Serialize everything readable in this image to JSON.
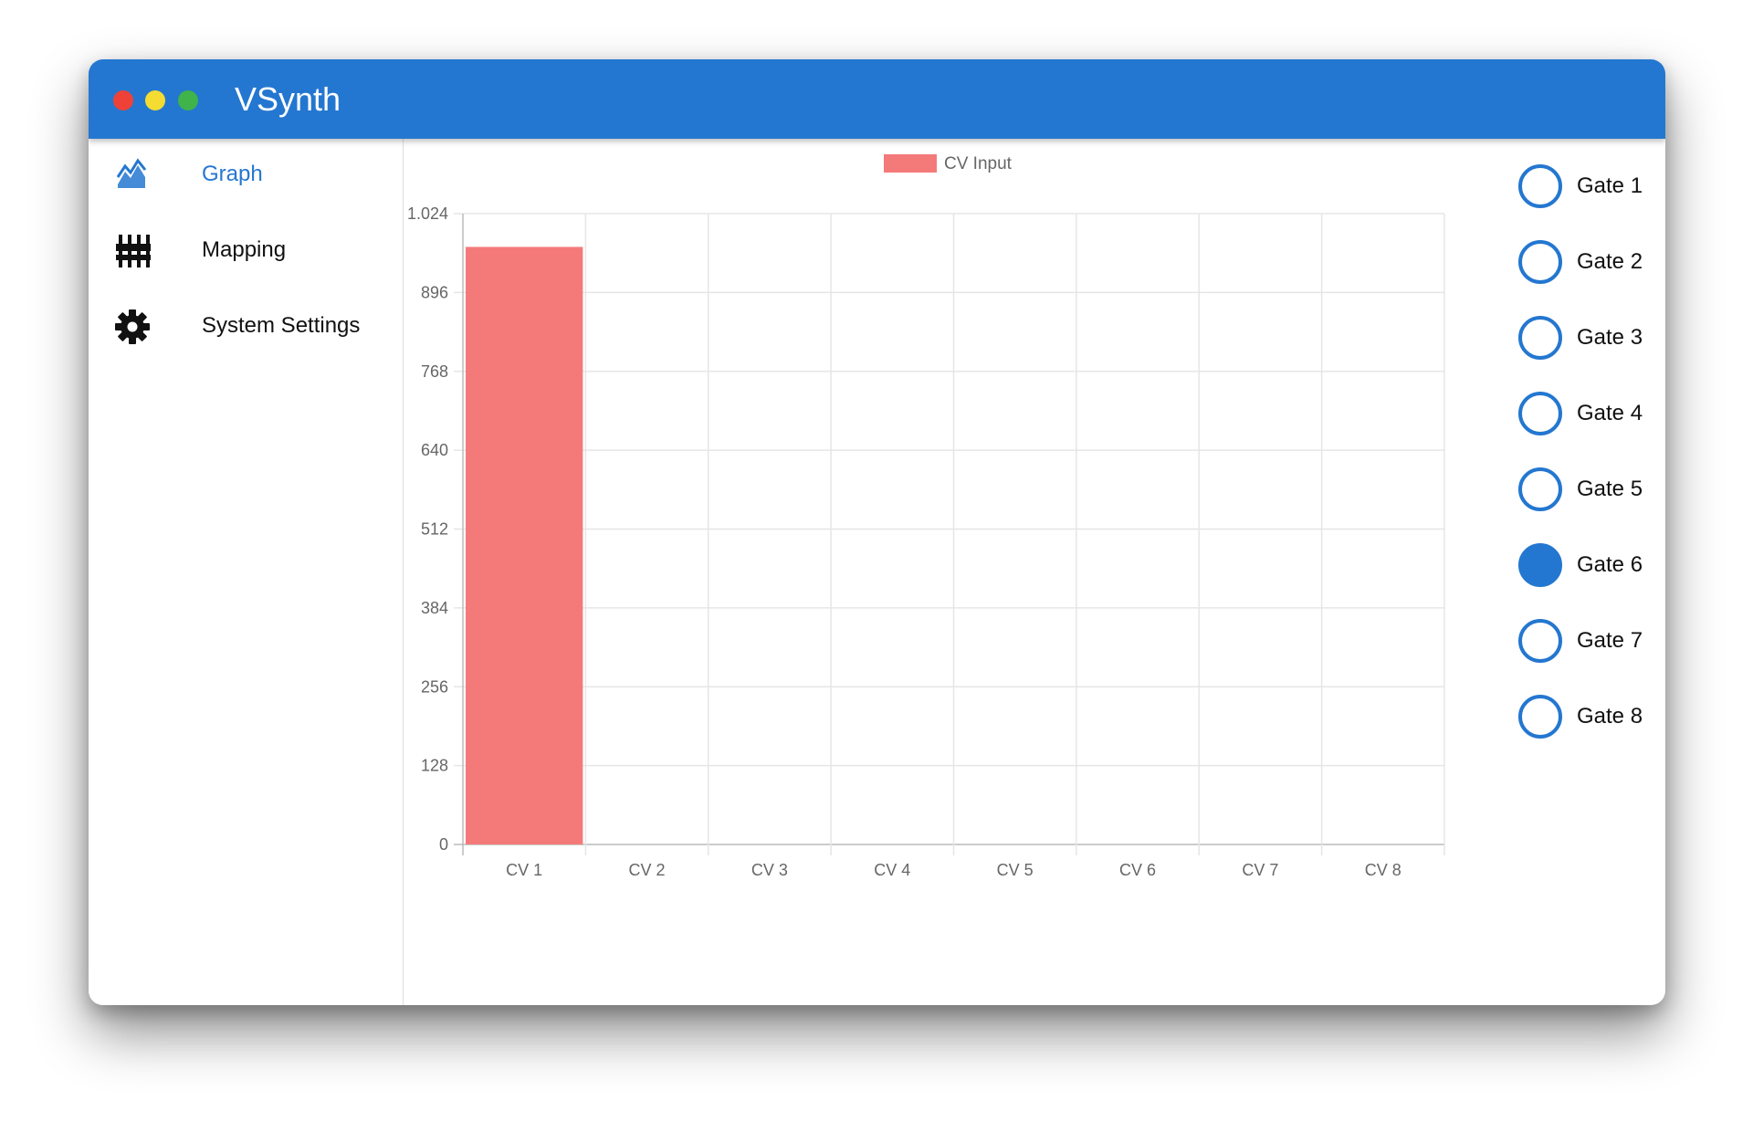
{
  "app": {
    "title": "VSynth",
    "accent_color": "#2477d0"
  },
  "sidebar": {
    "items": [
      {
        "label": "Graph",
        "icon": "area-chart-icon",
        "active": true
      },
      {
        "label": "Mapping",
        "icon": "sliders-icon",
        "active": false
      },
      {
        "label": "System Settings",
        "icon": "gear-icon",
        "active": false
      }
    ]
  },
  "chart_data": {
    "type": "bar",
    "categories": [
      "CV 1",
      "CV 2",
      "CV 3",
      "CV 4",
      "CV 5",
      "CV 6",
      "CV 7",
      "CV 8"
    ],
    "series": [
      {
        "name": "CV Input",
        "values": [
          970,
          0,
          0,
          0,
          0,
          0,
          0,
          0
        ],
        "color": "#f47a7a"
      }
    ],
    "ylim": [
      0,
      1024
    ],
    "yticks": [
      0,
      128,
      256,
      384,
      512,
      640,
      768,
      896,
      1024
    ],
    "ytick_labels": [
      "0",
      "128",
      "256",
      "384",
      "512",
      "640",
      "768",
      "896",
      "1.024"
    ],
    "legend_position": "top-center",
    "grid": true
  },
  "gates": [
    {
      "label": "Gate 1",
      "on": false
    },
    {
      "label": "Gate 2",
      "on": false
    },
    {
      "label": "Gate 3",
      "on": false
    },
    {
      "label": "Gate 4",
      "on": false
    },
    {
      "label": "Gate 5",
      "on": false
    },
    {
      "label": "Gate 6",
      "on": true
    },
    {
      "label": "Gate 7",
      "on": false
    },
    {
      "label": "Gate 8",
      "on": false
    }
  ]
}
